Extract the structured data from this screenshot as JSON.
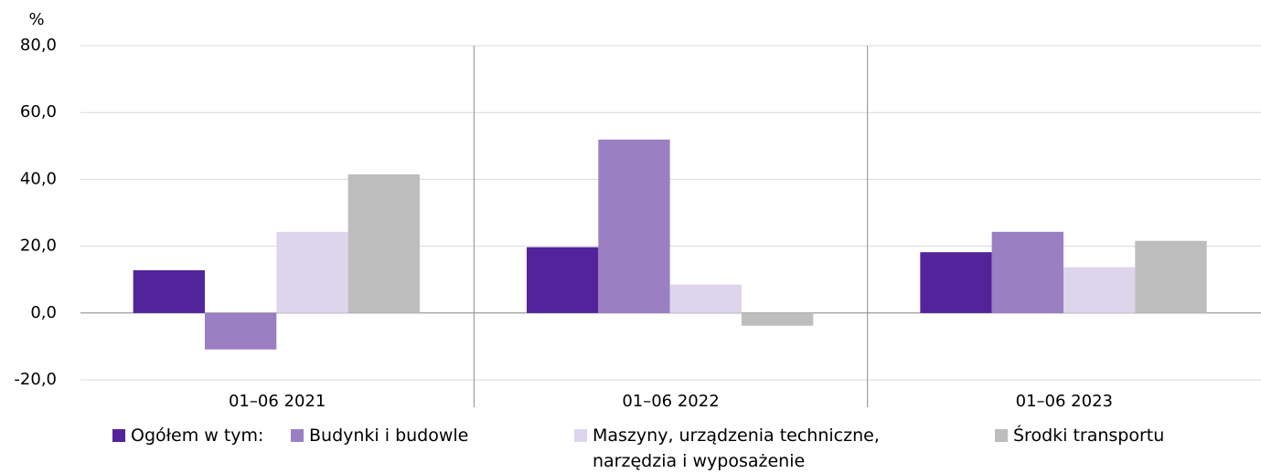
{
  "chart_data": {
    "type": "bar",
    "y_unit": "%",
    "categories": [
      "01–06 2021",
      "01–06 2022",
      "01–06 2023"
    ],
    "series": [
      {
        "name": "Ogółem w tym:",
        "color": "#52239a",
        "values": [
          12.8,
          19.7,
          18.2
        ]
      },
      {
        "name": "Budynki i budowle",
        "color": "#9a7fc2",
        "values": [
          -10.9,
          51.9,
          24.3
        ]
      },
      {
        "name": "Maszyny, urządzenia techniczne, narzędzia i wyposażenie",
        "color": "#ddd5eb",
        "values": [
          24.3,
          8.5,
          13.7
        ]
      },
      {
        "name": "Środki transportu",
        "color": "#bdbdbd",
        "values": [
          41.5,
          -3.8,
          21.6
        ]
      }
    ],
    "ylim": [
      -20,
      80
    ],
    "yticks": [
      {
        "value": -20,
        "label": "-20,0"
      },
      {
        "value": 0,
        "label": "0,0"
      },
      {
        "value": 20,
        "label": "20,0"
      },
      {
        "value": 40,
        "label": "40,0"
      },
      {
        "value": 60,
        "label": "60,0"
      },
      {
        "value": 80,
        "label": "80,0"
      }
    ],
    "grid": true
  }
}
